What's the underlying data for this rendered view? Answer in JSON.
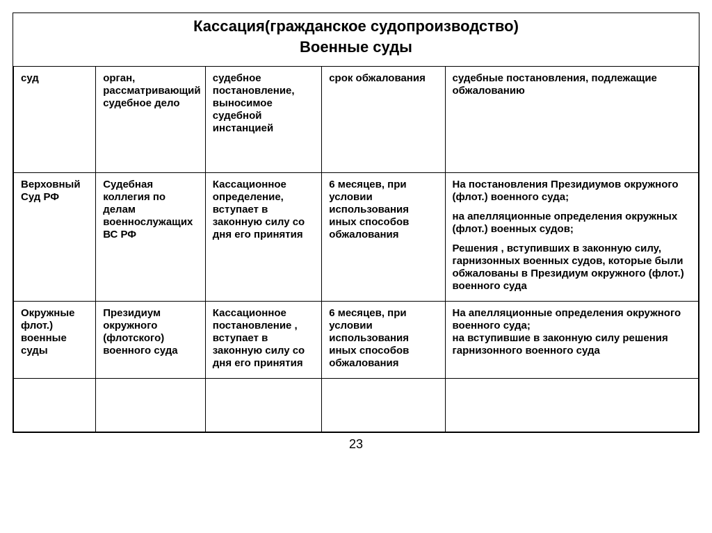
{
  "titles": {
    "line1": "Кассация(гражданское судопроизводство)",
    "line2": "Военные суды"
  },
  "headers": {
    "c1": "суд",
    "c2": "орган, рассматривающий судебное дело",
    "c3": "судебное постановление, выносимое судебной инстанцией",
    "c4": "срок обжалования",
    "c5": "судебные постановления, подлежащие обжалованию"
  },
  "rows": [
    {
      "c1": "Верховный Суд РФ",
      "c2": "Судебная коллегия по делам военнослужащих\nВС РФ",
      "c3": "Кассационное определение, вступает в законную силу со дня его принятия",
      "c4": "6 месяцев, при условии использования иных способов обжалования",
      "c5": "На постановления Президиумов окружного (флот.) военного суда;\n\nна апелляционные определения окружных (флот.) военных судов;\n\nРешения , вступивших в законную силу, гарнизонных военных судов, которые были обжалованы в Президиум окружного (флот.) военного суда"
    },
    {
      "c1": "Окружные флот.) военные суды",
      "c2": "Президиум окружного (флотского) военного суда",
      "c3": "Кассационное постановление , вступает в законную силу со дня его принятия",
      "c4": "6 месяцев, при условии использования иных способов обжалования",
      "c5": "На апелляционные определения окружного военного суда;\nна вступившие в законную силу решения  гарнизонного военного суда"
    }
  ],
  "page_number": "23",
  "style": {
    "font_family": "Arial",
    "text_color": "#000000",
    "border_color": "#000000",
    "background_color": "#ffffff",
    "title_fontsize": 22,
    "cell_fontsize": 15,
    "col_widths_pct": [
      12,
      16,
      17,
      18,
      37
    ]
  }
}
